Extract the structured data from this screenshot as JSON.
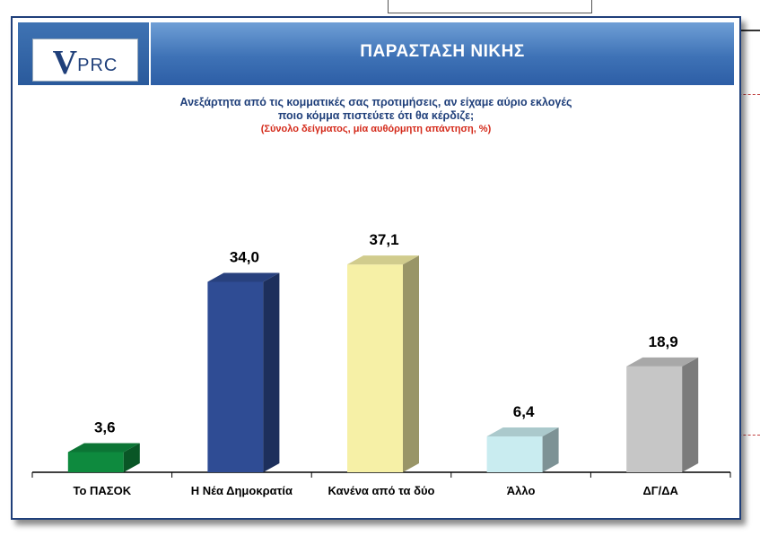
{
  "header": {
    "logo_v": "V",
    "logo_rest": "PRC",
    "title": "ΠΑΡΑΣΤΑΣΗ ΝΙΚΗΣ"
  },
  "question": {
    "line1": "Ανεξάρτητα από τις κομματικές σας προτιμήσεις, αν είχαμε αύριο εκλογές",
    "line2": "ποιο κόμμα πιστεύετε ότι θα κέρδιζε;",
    "note": "(Σύνολο δείγματος, μία αυθόρμητη απάντηση, %)"
  },
  "colors": {
    "header_blue": "#3e72b6",
    "frame_blue": "#1f3f7a",
    "note_red": "#d42a1a"
  },
  "chart_data": {
    "type": "bar",
    "categories": [
      "Το ΠΑΣΟΚ",
      "Η Νέα Δημοκρατία",
      "Κανένα από τα δύο",
      "Άλλο",
      "ΔΓ/ΔΑ"
    ],
    "values": [
      3.6,
      34.0,
      37.1,
      6.4,
      18.9
    ],
    "value_labels": [
      "3,6",
      "34,0",
      "37,1",
      "6,4",
      "18,9"
    ],
    "bar_colors": [
      "#0e8a3e",
      "#2f4c94",
      "#f6f0a6",
      "#c9ecf0",
      "#c6c6c6"
    ],
    "ylim": [
      0,
      40
    ],
    "grid": false,
    "legend": "none"
  }
}
